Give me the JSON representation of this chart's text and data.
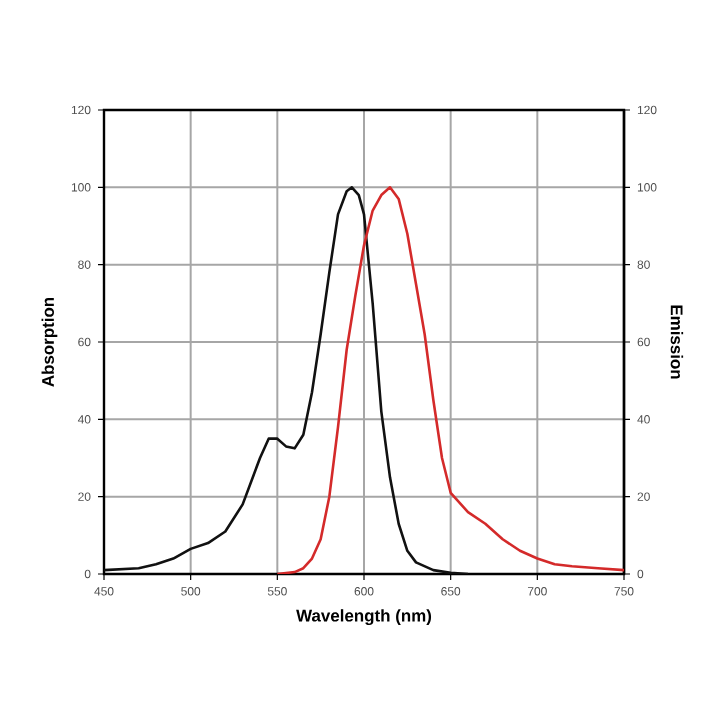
{
  "chart_data": {
    "type": "line",
    "xlabel": "Wavelength (nm)",
    "ylabel": "Absorption",
    "y2label": "Emission",
    "xlim": [
      450,
      750
    ],
    "xticks": [
      450,
      500,
      550,
      600,
      650,
      700,
      750
    ],
    "ylim": [
      0,
      120
    ],
    "yticks": [
      0,
      20,
      40,
      60,
      80,
      100,
      120
    ],
    "y2lim": [
      0,
      120
    ],
    "y2ticks": [
      0,
      20,
      40,
      60,
      80,
      100,
      120
    ],
    "grid": true,
    "marker": "none",
    "line_style": "solid",
    "series": [
      {
        "color": "#111111",
        "x": [
          450,
          470,
          480,
          490,
          500,
          510,
          520,
          530,
          540,
          545,
          550,
          555,
          560,
          565,
          570,
          575,
          580,
          585,
          590,
          593,
          597,
          600,
          605,
          610,
          615,
          620,
          625,
          630,
          640,
          650,
          660
        ],
        "values": [
          1,
          1.5,
          2.5,
          4,
          6.5,
          8,
          11,
          18,
          30,
          35,
          35,
          33,
          32.5,
          36,
          47,
          62,
          78,
          93,
          99,
          100,
          98,
          93,
          70,
          42,
          25,
          13,
          6,
          3,
          1,
          0.3,
          0
        ]
      },
      {
        "color": "#d42a2a",
        "axis": "y2",
        "x": [
          550,
          560,
          565,
          570,
          575,
          580,
          585,
          590,
          595,
          600,
          605,
          610,
          615,
          620,
          625,
          630,
          635,
          640,
          645,
          650,
          660,
          670,
          680,
          690,
          700,
          710,
          720,
          735,
          750
        ],
        "values": [
          0,
          0.5,
          1.5,
          4,
          9,
          20,
          38,
          58,
          72,
          85,
          94,
          98,
          100,
          97,
          88,
          75,
          62,
          45,
          30,
          21,
          16,
          13,
          9,
          6,
          4,
          2.5,
          2,
          1.5,
          1
        ]
      }
    ]
  }
}
